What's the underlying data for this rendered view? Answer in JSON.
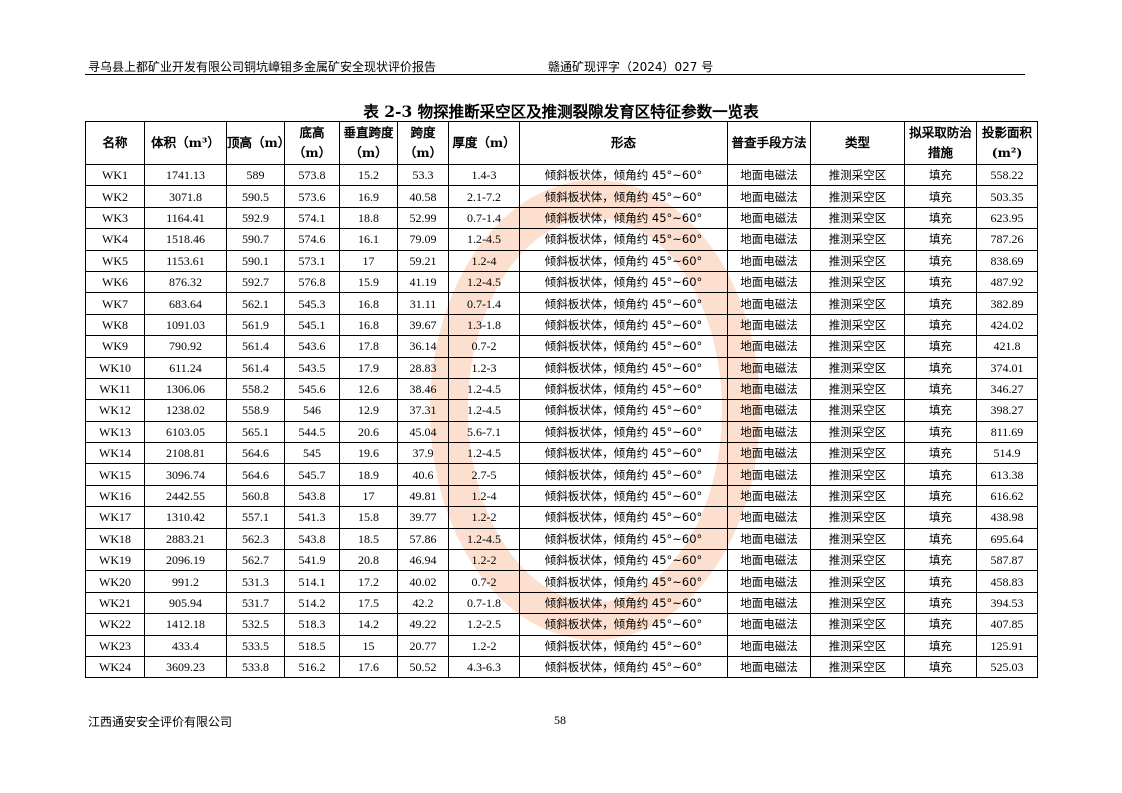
{
  "header": {
    "left": "寻乌县上都矿业开发有限公司铜坑嶂钼多金属矿安全现状评价报告",
    "right": "赣通矿现评字（2024）027 号"
  },
  "table_title": "表 2-3  物探推断采空区及推测裂隙发育区特征参数一览表",
  "columns": [
    "名称",
    "体积（m³）",
    "顶高（m）",
    "底高（m）",
    "垂直跨度（m）",
    "跨度（m）",
    "厚度（m）",
    "形态",
    "普查手段方法",
    "类型",
    "拟采取防治措施",
    "投影面积(m²)"
  ],
  "rows": [
    [
      "WK1",
      "1741.13",
      "589",
      "573.8",
      "15.2",
      "53.3",
      "1.4-3",
      "倾斜板状体，倾角约 45°~60°",
      "地面电磁法",
      "推测采空区",
      "填充",
      "558.22"
    ],
    [
      "WK2",
      "3071.8",
      "590.5",
      "573.6",
      "16.9",
      "40.58",
      "2.1-7.2",
      "倾斜板状体，倾角约 45°~60°",
      "地面电磁法",
      "推测采空区",
      "填充",
      "503.35"
    ],
    [
      "WK3",
      "1164.41",
      "592.9",
      "574.1",
      "18.8",
      "52.99",
      "0.7-1.4",
      "倾斜板状体，倾角约 45°~60°",
      "地面电磁法",
      "推测采空区",
      "填充",
      "623.95"
    ],
    [
      "WK4",
      "1518.46",
      "590.7",
      "574.6",
      "16.1",
      "79.09",
      "1.2-4.5",
      "倾斜板状体，倾角约 45°~60°",
      "地面电磁法",
      "推测采空区",
      "填充",
      "787.26"
    ],
    [
      "WK5",
      "1153.61",
      "590.1",
      "573.1",
      "17",
      "59.21",
      "1.2-4",
      "倾斜板状体，倾角约 45°~60°",
      "地面电磁法",
      "推测采空区",
      "填充",
      "838.69"
    ],
    [
      "WK6",
      "876.32",
      "592.7",
      "576.8",
      "15.9",
      "41.19",
      "1.2-4.5",
      "倾斜板状体，倾角约 45°~60°",
      "地面电磁法",
      "推测采空区",
      "填充",
      "487.92"
    ],
    [
      "WK7",
      "683.64",
      "562.1",
      "545.3",
      "16.8",
      "31.11",
      "0.7-1.4",
      "倾斜板状体，倾角约 45°~60°",
      "地面电磁法",
      "推测采空区",
      "填充",
      "382.89"
    ],
    [
      "WK8",
      "1091.03",
      "561.9",
      "545.1",
      "16.8",
      "39.67",
      "1.3-1.8",
      "倾斜板状体，倾角约 45°~60°",
      "地面电磁法",
      "推测采空区",
      "填充",
      "424.02"
    ],
    [
      "WK9",
      "790.92",
      "561.4",
      "543.6",
      "17.8",
      "36.14",
      "0.7-2",
      "倾斜板状体，倾角约 45°~60°",
      "地面电磁法",
      "推测采空区",
      "填充",
      "421.8"
    ],
    [
      "WK10",
      "611.24",
      "561.4",
      "543.5",
      "17.9",
      "28.83",
      "1.2-3",
      "倾斜板状体，倾角约 45°~60°",
      "地面电磁法",
      "推测采空区",
      "填充",
      "374.01"
    ],
    [
      "WK11",
      "1306.06",
      "558.2",
      "545.6",
      "12.6",
      "38.46",
      "1.2-4.5",
      "倾斜板状体，倾角约 45°~60°",
      "地面电磁法",
      "推测采空区",
      "填充",
      "346.27"
    ],
    [
      "WK12",
      "1238.02",
      "558.9",
      "546",
      "12.9",
      "37.31",
      "1.2-4.5",
      "倾斜板状体，倾角约 45°~60°",
      "地面电磁法",
      "推测采空区",
      "填充",
      "398.27"
    ],
    [
      "WK13",
      "6103.05",
      "565.1",
      "544.5",
      "20.6",
      "45.04",
      "5.6-7.1",
      "倾斜板状体，倾角约 45°~60°",
      "地面电磁法",
      "推测采空区",
      "填充",
      "811.69"
    ],
    [
      "WK14",
      "2108.81",
      "564.6",
      "545",
      "19.6",
      "37.9",
      "1.2-4.5",
      "倾斜板状体，倾角约 45°~60°",
      "地面电磁法",
      "推测采空区",
      "填充",
      "514.9"
    ],
    [
      "WK15",
      "3096.74",
      "564.6",
      "545.7",
      "18.9",
      "40.6",
      "2.7-5",
      "倾斜板状体，倾角约 45°~60°",
      "地面电磁法",
      "推测采空区",
      "填充",
      "613.38"
    ],
    [
      "WK16",
      "2442.55",
      "560.8",
      "543.8",
      "17",
      "49.81",
      "1.2-4",
      "倾斜板状体，倾角约 45°~60°",
      "地面电磁法",
      "推测采空区",
      "填充",
      "616.62"
    ],
    [
      "WK17",
      "1310.42",
      "557.1",
      "541.3",
      "15.8",
      "39.77",
      "1.2-2",
      "倾斜板状体，倾角约 45°~60°",
      "地面电磁法",
      "推测采空区",
      "填充",
      "438.98"
    ],
    [
      "WK18",
      "2883.21",
      "562.3",
      "543.8",
      "18.5",
      "57.86",
      "1.2-4.5",
      "倾斜板状体，倾角约 45°~60°",
      "地面电磁法",
      "推测采空区",
      "填充",
      "695.64"
    ],
    [
      "WK19",
      "2096.19",
      "562.7",
      "541.9",
      "20.8",
      "46.94",
      "1.2-2",
      "倾斜板状体，倾角约 45°~60°",
      "地面电磁法",
      "推测采空区",
      "填充",
      "587.87"
    ],
    [
      "WK20",
      "991.2",
      "531.3",
      "514.1",
      "17.2",
      "40.02",
      "0.7-2",
      "倾斜板状体，倾角约 45°~60°",
      "地面电磁法",
      "推测采空区",
      "填充",
      "458.83"
    ],
    [
      "WK21",
      "905.94",
      "531.7",
      "514.2",
      "17.5",
      "42.2",
      "0.7-1.8",
      "倾斜板状体，倾角约 45°~60°",
      "地面电磁法",
      "推测采空区",
      "填充",
      "394.53"
    ],
    [
      "WK22",
      "1412.18",
      "532.5",
      "518.3",
      "14.2",
      "49.22",
      "1.2-2.5",
      "倾斜板状体，倾角约 45°~60°",
      "地面电磁法",
      "推测采空区",
      "填充",
      "407.85"
    ],
    [
      "WK23",
      "433.4",
      "533.5",
      "518.5",
      "15",
      "20.77",
      "1.2-2",
      "倾斜板状体，倾角约 45°~60°",
      "地面电磁法",
      "推测采空区",
      "填充",
      "125.91"
    ],
    [
      "WK24",
      "3609.23",
      "533.8",
      "516.2",
      "17.6",
      "50.52",
      "4.3-6.3",
      "倾斜板状体，倾角约 45°~60°",
      "地面电磁法",
      "推测采空区",
      "填充",
      "525.03"
    ]
  ],
  "footer": {
    "company": "江西通安安全评价有限公司",
    "page_number": "58"
  },
  "watermark_color": "#f58c50"
}
